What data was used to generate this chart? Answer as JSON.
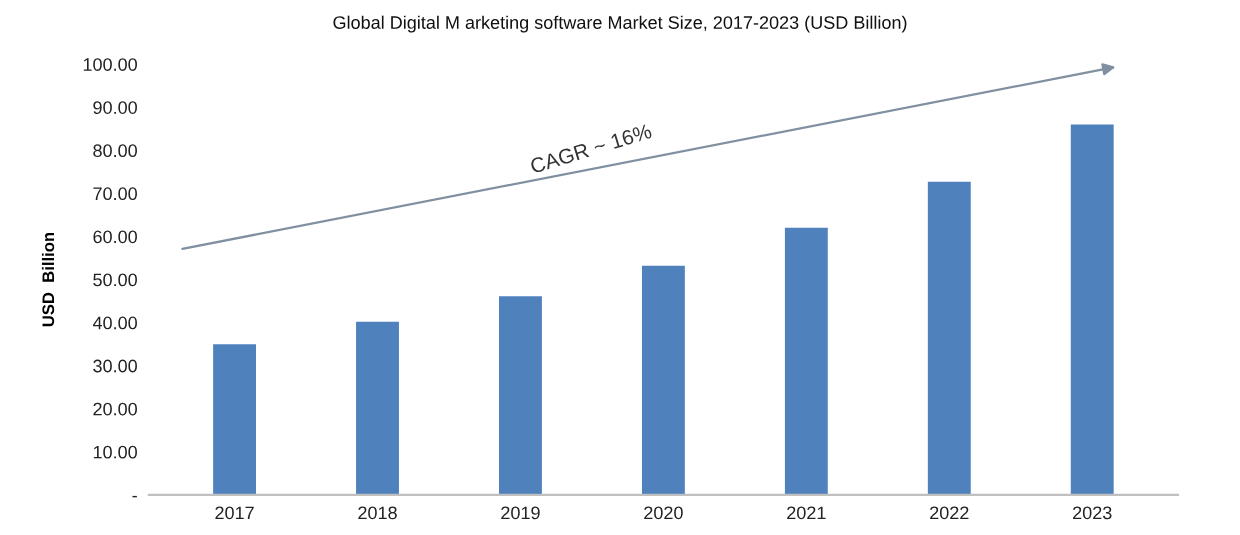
{
  "chart_data": {
    "type": "bar",
    "title": "Global Digital M arketing software Market Size, 2017-2023 (USD Billion)",
    "ylabel": "USD  Billion",
    "categories": [
      "2017",
      "2018",
      "2019",
      "2020",
      "2021",
      "2022",
      "2023"
    ],
    "values": [
      35.0,
      40.2,
      46.1,
      53.2,
      62.0,
      72.7,
      86.0
    ],
    "color": "#4f81bd",
    "ylim": [
      0,
      100
    ],
    "yticks": [
      {
        "value": 0,
        "label": "-"
      },
      {
        "value": 10,
        "label": "10.00"
      },
      {
        "value": 20,
        "label": "20.00"
      },
      {
        "value": 30,
        "label": "30.00"
      },
      {
        "value": 40,
        "label": "40.00"
      },
      {
        "value": 50,
        "label": "50.00"
      },
      {
        "value": 60,
        "label": "60.00"
      },
      {
        "value": 70,
        "label": "70.00"
      },
      {
        "value": 80,
        "label": "80.00"
      },
      {
        "value": 90,
        "label": "90.00"
      },
      {
        "value": 100,
        "label": "100.00"
      }
    ],
    "annotations": [
      "CAGR ~ 16%"
    ],
    "grid": false
  }
}
